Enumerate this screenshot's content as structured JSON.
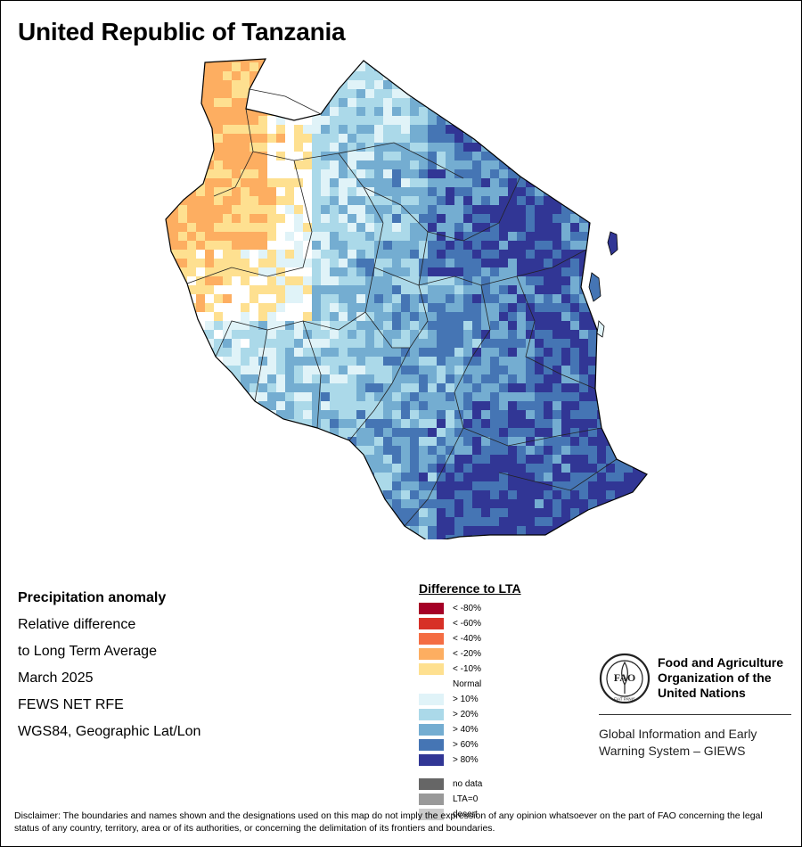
{
  "map": {
    "title": "United Republic of Tanzania",
    "info_lines": [
      "Precipitation anomaly",
      "Relative difference",
      "to Long Term Average",
      "March 2025",
      "FEWS NET RFE",
      "WGS84, Geographic Lat/Lon"
    ],
    "legend": {
      "title": "Difference to LTA",
      "classes": [
        {
          "label": "< -80%",
          "color": "#a50026"
        },
        {
          "label": "< -60%",
          "color": "#d73027"
        },
        {
          "label": "< -40%",
          "color": "#f46d43"
        },
        {
          "label": "< -20%",
          "color": "#fdae61"
        },
        {
          "label": "< -10%",
          "color": "#fee090"
        },
        {
          "label": "Normal",
          "color": ""
        },
        {
          "label": "> 10%",
          "color": "#e0f3f8"
        },
        {
          "label": "> 20%",
          "color": "#abd9e9"
        },
        {
          "label": "> 40%",
          "color": "#74add1"
        },
        {
          "label": "> 60%",
          "color": "#4575b4"
        },
        {
          "label": "> 80%",
          "color": "#313695"
        }
      ],
      "extra_classes": [
        {
          "label": "no data",
          "color": "#666666"
        },
        {
          "label": "LTA=0",
          "color": "#999999"
        },
        {
          "label": "desert",
          "color": "#cccccc"
        }
      ]
    },
    "organization": {
      "logo_text": "FAO",
      "logo_motto": "FIAT PANIS",
      "name_lines": [
        "Food and Agriculture",
        "Organization of the",
        "United Nations"
      ],
      "system_lines": [
        "Global Information and Early",
        "Warning System – GIEWS"
      ]
    },
    "disclaimer": "Disclaimer: The boundaries and names shown and the designations used on this map do not imply the expression of any opinion whatsoever on the part of FAO concerning the legal status of any country, territory, area or of its authorities, or concerning the delimitation of its frontiers and boundaries."
  }
}
